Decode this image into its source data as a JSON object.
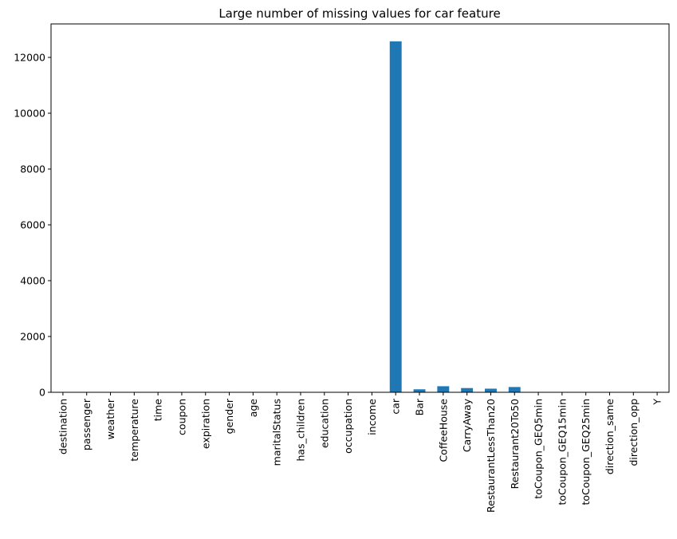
{
  "chart_data": {
    "type": "bar",
    "title": "Large number of missing values for car feature",
    "xlabel": "",
    "ylabel": "",
    "categories": [
      "destination",
      "passenger",
      "weather",
      "temperature",
      "time",
      "coupon",
      "expiration",
      "gender",
      "age",
      "maritalStatus",
      "has_children",
      "education",
      "occupation",
      "income",
      "car",
      "Bar",
      "CoffeeHouse",
      "CarryAway",
      "RestaurantLessThan20",
      "Restaurant20To50",
      "toCoupon_GEQ5min",
      "toCoupon_GEQ15min",
      "toCoupon_GEQ25min",
      "direction_same",
      "direction_opp",
      "Y"
    ],
    "values": [
      0,
      0,
      0,
      0,
      0,
      0,
      0,
      0,
      0,
      0,
      0,
      0,
      0,
      0,
      12576,
      107,
      217,
      151,
      130,
      189,
      0,
      0,
      0,
      0,
      0,
      0
    ],
    "ylim": [
      0,
      13200
    ],
    "yticks": [
      0,
      2000,
      4000,
      6000,
      8000,
      10000,
      12000
    ],
    "grid": false,
    "legend": "none",
    "bar_color": "#1f77b4"
  }
}
